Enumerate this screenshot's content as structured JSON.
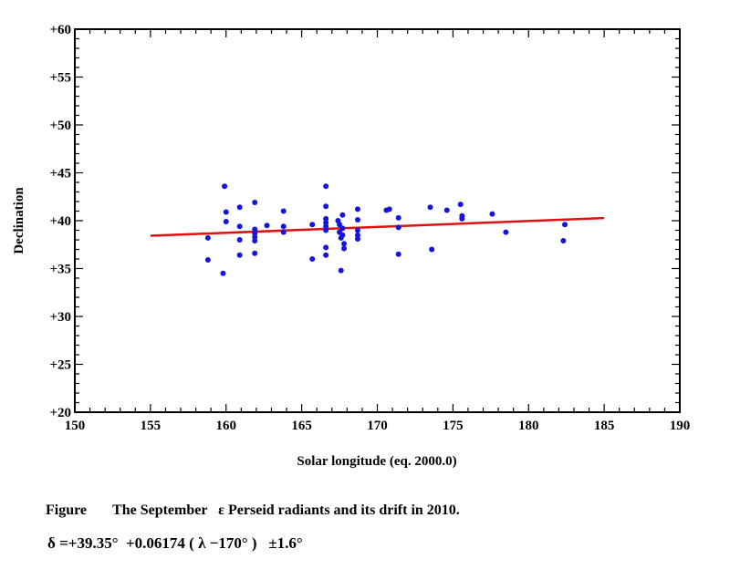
{
  "chart_data": {
    "type": "scatter",
    "title": "",
    "xlabel": "Solar longitude (eq. 2000.0)",
    "ylabel": "Declination",
    "xlim": [
      150,
      190
    ],
    "ylim": [
      20,
      60
    ],
    "x_ticks": [
      150,
      155,
      160,
      165,
      170,
      175,
      180,
      185,
      190
    ],
    "y_ticks": [
      20,
      25,
      30,
      35,
      40,
      45,
      50,
      55,
      60
    ],
    "y_tick_labels": [
      "+20",
      "+25",
      "+30",
      "+35",
      "+40",
      "+45",
      "+50",
      "+55",
      "+60"
    ],
    "grid": false,
    "colors": {
      "points": "#1414e0",
      "fit": "#e01010",
      "axes": "#000000"
    },
    "series": [
      {
        "name": "radiants",
        "points": [
          [
            158.8,
            38.2
          ],
          [
            158.8,
            35.9
          ],
          [
            159.8,
            34.5
          ],
          [
            159.9,
            43.6
          ],
          [
            160.0,
            40.9
          ],
          [
            160.0,
            39.9
          ],
          [
            160.9,
            41.4
          ],
          [
            160.9,
            39.4
          ],
          [
            160.9,
            38.0
          ],
          [
            160.9,
            36.4
          ],
          [
            161.9,
            41.9
          ],
          [
            161.9,
            39.1
          ],
          [
            161.9,
            38.7
          ],
          [
            161.9,
            38.3
          ],
          [
            161.9,
            37.9
          ],
          [
            161.9,
            36.6
          ],
          [
            162.7,
            39.5
          ],
          [
            163.8,
            41.0
          ],
          [
            163.8,
            39.4
          ],
          [
            163.8,
            38.8
          ],
          [
            165.7,
            39.6
          ],
          [
            165.7,
            36.0
          ],
          [
            166.6,
            43.6
          ],
          [
            166.6,
            41.5
          ],
          [
            166.6,
            40.2
          ],
          [
            166.6,
            39.8
          ],
          [
            166.6,
            39.4
          ],
          [
            166.6,
            39.0
          ],
          [
            166.6,
            37.2
          ],
          [
            166.6,
            36.4
          ],
          [
            167.4,
            40.0
          ],
          [
            167.5,
            39.6
          ],
          [
            167.5,
            38.8
          ],
          [
            167.6,
            38.2
          ],
          [
            167.6,
            34.8
          ],
          [
            167.7,
            40.6
          ],
          [
            167.7,
            39.2
          ],
          [
            167.7,
            38.5
          ],
          [
            167.8,
            37.6
          ],
          [
            167.8,
            37.1
          ],
          [
            168.7,
            41.2
          ],
          [
            168.7,
            40.1
          ],
          [
            168.7,
            39.0
          ],
          [
            168.7,
            38.5
          ],
          [
            168.7,
            38.1
          ],
          [
            170.6,
            41.1
          ],
          [
            170.8,
            41.2
          ],
          [
            171.4,
            40.3
          ],
          [
            171.4,
            39.3
          ],
          [
            171.4,
            36.5
          ],
          [
            173.5,
            41.4
          ],
          [
            173.6,
            37.0
          ],
          [
            174.6,
            41.1
          ],
          [
            175.5,
            41.7
          ],
          [
            175.6,
            40.5
          ],
          [
            175.6,
            40.2
          ],
          [
            177.6,
            40.7
          ],
          [
            178.5,
            38.8
          ],
          [
            182.3,
            37.9
          ],
          [
            182.4,
            39.6
          ]
        ]
      }
    ],
    "fit_line": {
      "name": "drift",
      "x_range": [
        155,
        185
      ],
      "intercept": 39.35,
      "slope": 0.06174,
      "reference_longitude": 170
    }
  },
  "caption": {
    "label": "Figure",
    "text": "The September   ε Perseid radiants and its drift in 2010.",
    "formula": "δ =+39.35°  +0.06174 ( λ −170° )   ±1.6°"
  }
}
